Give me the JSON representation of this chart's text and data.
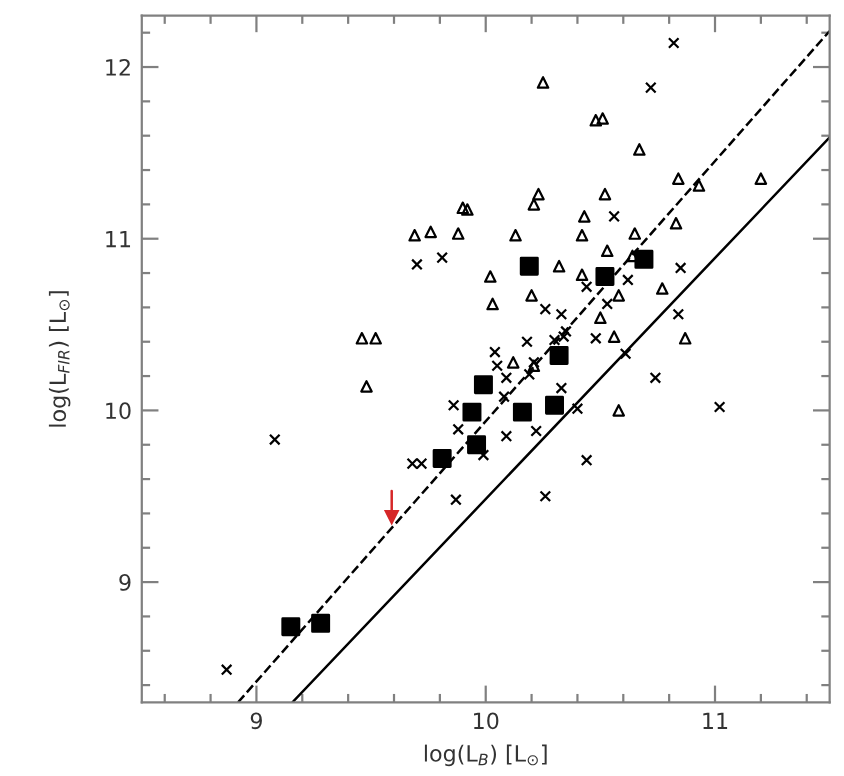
{
  "chart_data": {
    "type": "scatter",
    "xlabel": "log(L$_{B}$) [L$_{⊙}$]",
    "ylabel": "log(L$_{FIR}$) [L$_{⊙}$]",
    "xlim": [
      8.5,
      11.5
    ],
    "ylim": [
      8.3,
      12.3
    ],
    "xticks": [
      {
        "value": 8.6,
        "label": null
      },
      {
        "value": 8.8,
        "label": null
      },
      9,
      {
        "value": 9.2,
        "label": null
      },
      {
        "value": 9.4,
        "label": null
      },
      {
        "value": 9.6,
        "label": null
      },
      {
        "value": 9.8,
        "label": null
      },
      10,
      {
        "value": 10.2,
        "label": null
      },
      {
        "value": 10.4,
        "label": null
      },
      {
        "value": 10.6,
        "label": null
      },
      {
        "value": 10.8,
        "label": null
      },
      11,
      {
        "value": 11.2,
        "label": null
      },
      {
        "value": 11.4,
        "label": null
      }
    ],
    "yticks": [
      {
        "value": 8.4,
        "label": null
      },
      {
        "value": 8.6,
        "label": null
      },
      {
        "value": 8.8,
        "label": null
      },
      9,
      {
        "value": 9.2,
        "label": null
      },
      {
        "value": 9.4,
        "label": null
      },
      {
        "value": 9.6,
        "label": null
      },
      {
        "value": 9.8,
        "label": null
      },
      10,
      {
        "value": 10.2,
        "label": null
      },
      {
        "value": 10.4,
        "label": null
      },
      {
        "value": 10.6,
        "label": null
      },
      {
        "value": 10.8,
        "label": null
      },
      11,
      {
        "value": 11.2,
        "label": null
      },
      {
        "value": 11.4,
        "label": null
      },
      {
        "value": 11.6,
        "label": null
      },
      {
        "value": 11.8,
        "label": null
      },
      12,
      {
        "value": 12.2,
        "label": null
      }
    ],
    "grid": false,
    "legend": false,
    "series": [
      {
        "marker": "triangle",
        "color": "#000000",
        "x": [
          9.46,
          9.52,
          9.48,
          9.69,
          9.76,
          9.88,
          9.9,
          9.92,
          10.25,
          10.48,
          10.51,
          10.67,
          10.84,
          10.93,
          11.2,
          10.13,
          10.23,
          10.21,
          10.43,
          10.52,
          10.42,
          10.53,
          10.65,
          10.83,
          10.32,
          10.02,
          10.42,
          10.2,
          10.03,
          10.58,
          10.77,
          10.5,
          10.56,
          10.87,
          10.12,
          10.21,
          10.64,
          10.58
        ],
        "values": [
          10.42,
          10.42,
          10.14,
          11.02,
          11.04,
          11.03,
          11.18,
          11.17,
          11.91,
          11.69,
          11.7,
          11.52,
          11.35,
          11.31,
          11.35,
          11.02,
          11.26,
          11.2,
          11.13,
          11.26,
          11.02,
          10.93,
          11.03,
          11.09,
          10.84,
          10.78,
          10.79,
          10.67,
          10.62,
          10.67,
          10.71,
          10.54,
          10.43,
          10.42,
          10.28,
          10.26,
          10.9,
          10.0
        ]
      },
      {
        "marker": "cross",
        "color": "#000000",
        "x": [
          9.7,
          9.81,
          9.08,
          9.86,
          9.88,
          9.68,
          9.72,
          9.87,
          8.87,
          10.09,
          10.33,
          10.08,
          10.09,
          10.22,
          9.99,
          10.4,
          10.44,
          10.74,
          11.02,
          10.26,
          10.19,
          10.82,
          10.72,
          10.56,
          10.85,
          10.62,
          10.44,
          10.26,
          10.33,
          10.53,
          10.35,
          10.34,
          10.3,
          10.18,
          10.48,
          10.84,
          10.04,
          10.05,
          10.21,
          10.61
        ],
        "values": [
          10.85,
          10.89,
          9.83,
          10.03,
          9.89,
          9.69,
          9.69,
          9.48,
          8.49,
          10.19,
          10.13,
          10.08,
          9.85,
          9.88,
          9.74,
          10.01,
          9.71,
          10.19,
          10.02,
          9.5,
          10.21,
          12.14,
          11.88,
          11.13,
          10.83,
          10.76,
          10.72,
          10.59,
          10.56,
          10.62,
          10.46,
          10.43,
          10.41,
          10.4,
          10.42,
          10.56,
          10.34,
          10.26,
          10.28,
          10.33
        ]
      },
      {
        "marker": "square",
        "color": "#000000",
        "x": [
          9.15,
          9.28,
          9.81,
          9.94,
          9.96,
          9.99,
          10.16,
          10.3,
          10.19,
          10.52,
          10.69,
          10.32
        ],
        "values": [
          8.74,
          8.76,
          9.72,
          9.99,
          9.8,
          10.15,
          9.99,
          10.03,
          10.84,
          10.78,
          10.88,
          10.32
        ]
      },
      {
        "type": "line",
        "marker": "triangle",
        "color": "#d62728",
        "x": [
          9.59,
          9.59
        ],
        "values": [
          9.53,
          9.38
        ]
      },
      {
        "type": "line",
        "line_style": "dashed",
        "color": "#000000",
        "x": [
          8.92,
          11.5
        ],
        "values": [
          8.3,
          12.21
        ]
      },
      {
        "type": "line",
        "line_style": "solid",
        "color": "#000000",
        "x": [
          9.157,
          11.5
        ],
        "values": [
          8.3,
          11.59
        ]
      }
    ]
  }
}
